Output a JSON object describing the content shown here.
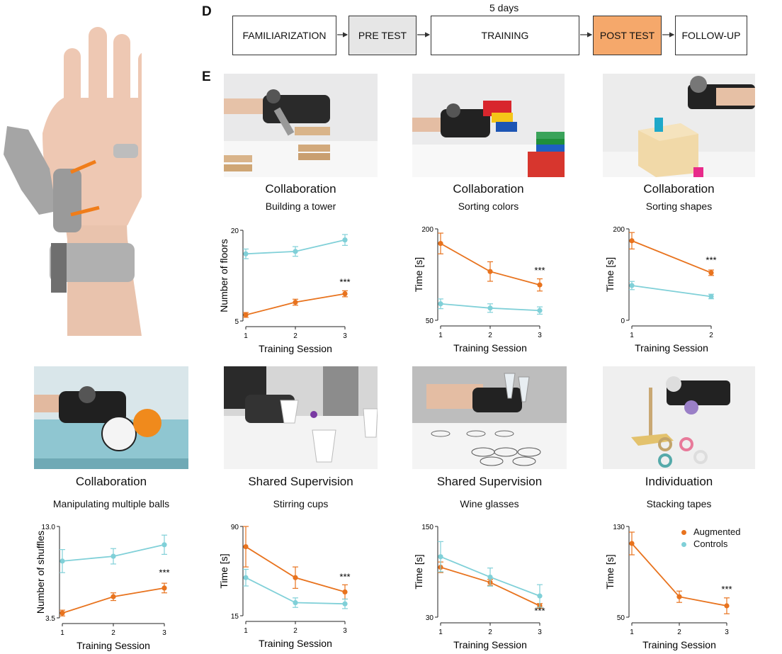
{
  "panel_d": {
    "letter": "D",
    "duration_label": "5 days",
    "steps": [
      "FAMILIARIZATION",
      "PRE TEST",
      "TRAINING",
      "POST TEST",
      "FOLLOW-UP"
    ],
    "step_colors": [
      "#ffffff",
      "#e6e6e6",
      "#ffffff",
      "#f5a86b",
      "#ffffff"
    ]
  },
  "panel_e": {
    "letter": "E"
  },
  "legend": {
    "items": [
      {
        "label": "Augmented",
        "color": "#e8731e"
      },
      {
        "label": "Controls",
        "color": "#80d0d8"
      }
    ]
  },
  "tasks": [
    {
      "category": "Collaboration",
      "name": "Building a tower"
    },
    {
      "category": "Collaboration",
      "name": "Sorting colors"
    },
    {
      "category": "Collaboration",
      "name": "Sorting shapes"
    },
    {
      "category": "Collaboration",
      "name": "Manipulating multiple balls"
    },
    {
      "category": "Shared Supervision",
      "name": "Stirring cups"
    },
    {
      "category": "Shared Supervision",
      "name": "Wine glasses"
    },
    {
      "category": "Individuation",
      "name": "Stacking tapes"
    }
  ],
  "chart_data": [
    {
      "type": "line",
      "xlabel": "Training Session",
      "ylabel": "Number of floors",
      "x": [
        1,
        2,
        3
      ],
      "ylim": [
        5,
        20
      ],
      "yticks": [
        "20",
        "5"
      ],
      "xticks": [
        "1",
        "2",
        "3"
      ],
      "series": [
        {
          "name": "Augmented",
          "values": [
            6.0,
            8.1,
            9.5
          ],
          "err": [
            0.4,
            0.5,
            0.5
          ]
        },
        {
          "name": "Controls",
          "values": [
            16.1,
            16.5,
            18.4
          ],
          "err": [
            0.8,
            0.8,
            0.9
          ]
        }
      ],
      "annotations": [
        {
          "text": "***",
          "x": 3,
          "y": 10.9
        }
      ]
    },
    {
      "type": "line",
      "xlabel": "Training Session",
      "ylabel": "Time [s]",
      "x": [
        1,
        2,
        3
      ],
      "ylim": [
        50,
        200
      ],
      "yticks": [
        "200",
        "50"
      ],
      "xticks": [
        "1",
        "2",
        "3"
      ],
      "series": [
        {
          "name": "Augmented",
          "values": [
            176,
            130,
            108
          ],
          "err": [
            17,
            16,
            10
          ]
        },
        {
          "name": "Controls",
          "values": [
            77,
            70,
            66
          ],
          "err": [
            8,
            7,
            6
          ]
        }
      ],
      "annotations": [
        {
          "text": "***",
          "x": 3,
          "y": 127
        }
      ]
    },
    {
      "type": "line",
      "xlabel": "Training Session",
      "ylabel": "Time [s]",
      "x": [
        1,
        2
      ],
      "ylim": [
        0,
        200
      ],
      "yticks": [
        "200",
        "0"
      ],
      "xticks": [
        "1",
        "2"
      ],
      "series": [
        {
          "name": "Augmented",
          "values": [
            174,
            104
          ],
          "err": [
            18,
            6
          ]
        },
        {
          "name": "Controls",
          "values": [
            76,
            52
          ],
          "err": [
            9,
            5
          ]
        }
      ],
      "annotations": [
        {
          "text": "***",
          "x": 2,
          "y": 125
        }
      ]
    },
    {
      "type": "line",
      "xlabel": "Training Session",
      "ylabel": "Number of shuffles",
      "x": [
        1,
        2,
        3
      ],
      "ylim": [
        3.5,
        13.0
      ],
      "yticks": [
        "13.0",
        "3.5"
      ],
      "xticks": [
        "1",
        "2",
        "3"
      ],
      "series": [
        {
          "name": "Augmented",
          "values": [
            4.0,
            5.7,
            6.6
          ],
          "err": [
            0.3,
            0.4,
            0.5
          ]
        },
        {
          "name": "Controls",
          "values": [
            9.4,
            9.9,
            11.1
          ],
          "err": [
            1.2,
            0.8,
            1.0
          ]
        }
      ],
      "annotations": [
        {
          "text": "***",
          "x": 3,
          "y": 7.9
        }
      ]
    },
    {
      "type": "line",
      "xlabel": "Training Session",
      "ylabel": "Time [s]",
      "x": [
        1,
        2,
        3
      ],
      "ylim": [
        15,
        90
      ],
      "yticks": [
        "90",
        "15"
      ],
      "xticks": [
        "1",
        "2",
        "3"
      ],
      "series": [
        {
          "name": "Augmented",
          "values": [
            73,
            47,
            35
          ],
          "err": [
            17,
            9,
            6
          ]
        },
        {
          "name": "Controls",
          "values": [
            47,
            26,
            25
          ],
          "err": [
            7,
            4,
            4
          ]
        }
      ],
      "annotations": [
        {
          "text": "***",
          "x": 3,
          "y": 45
        }
      ]
    },
    {
      "type": "line",
      "xlabel": "Training Session",
      "ylabel": "Time [s]",
      "x": [
        1,
        2,
        3
      ],
      "ylim": [
        30,
        150
      ],
      "yticks": [
        "150",
        "30"
      ],
      "xticks": [
        "1",
        "2",
        "3"
      ],
      "series": [
        {
          "name": "Augmented",
          "values": [
            96,
            76,
            45
          ],
          "err": [
            7,
            4,
            3
          ]
        },
        {
          "name": "Controls",
          "values": [
            110,
            83,
            58
          ],
          "err": [
            20,
            12,
            15
          ]
        }
      ],
      "annotations": [
        {
          "text": "***",
          "x": 3,
          "y": 34
        }
      ]
    },
    {
      "type": "line",
      "xlabel": "Training Session",
      "ylabel": "Time [s]",
      "x": [
        1,
        2,
        3
      ],
      "ylim": [
        50,
        130
      ],
      "yticks": [
        "130",
        "50"
      ],
      "xticks": [
        "1",
        "2",
        "3"
      ],
      "series": [
        {
          "name": "Augmented",
          "values": [
            115,
            68,
            60
          ],
          "err": [
            10,
            5,
            7
          ]
        }
      ],
      "annotations": [
        {
          "text": "***",
          "x": 3,
          "y": 72
        }
      ]
    }
  ]
}
